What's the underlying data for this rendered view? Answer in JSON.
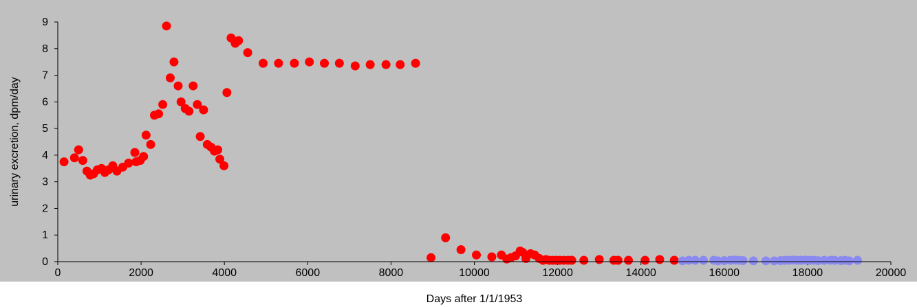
{
  "chart_data": {
    "type": "scatter",
    "title": "",
    "xlabel": "Days after 1/1/1953",
    "ylabel": "urinary excretion, dpm/day",
    "xlim": [
      0,
      20000
    ],
    "ylim": [
      0,
      9
    ],
    "xticks": [
      0,
      2000,
      4000,
      6000,
      8000,
      10000,
      12000,
      14000,
      16000,
      18000,
      20000
    ],
    "yticks": [
      0,
      1,
      2,
      3,
      4,
      5,
      6,
      7,
      8,
      9
    ],
    "grid": false,
    "legend": "none",
    "plot_background": "#c0c0c0",
    "series": [
      {
        "color": "#ff0000",
        "points": [
          [
            150,
            3.75
          ],
          [
            400,
            3.9
          ],
          [
            500,
            4.2
          ],
          [
            600,
            3.8
          ],
          [
            700,
            3.4
          ],
          [
            780,
            3.25
          ],
          [
            860,
            3.3
          ],
          [
            950,
            3.45
          ],
          [
            1050,
            3.5
          ],
          [
            1130,
            3.35
          ],
          [
            1220,
            3.45
          ],
          [
            1320,
            3.6
          ],
          [
            1420,
            3.4
          ],
          [
            1560,
            3.55
          ],
          [
            1700,
            3.7
          ],
          [
            1850,
            4.1
          ],
          [
            1880,
            3.75
          ],
          [
            1980,
            3.8
          ],
          [
            2060,
            3.95
          ],
          [
            2120,
            4.75
          ],
          [
            2230,
            4.4
          ],
          [
            2320,
            5.5
          ],
          [
            2420,
            5.55
          ],
          [
            2520,
            5.9
          ],
          [
            2610,
            8.85
          ],
          [
            2700,
            6.9
          ],
          [
            2790,
            7.5
          ],
          [
            2890,
            6.6
          ],
          [
            2960,
            6.0
          ],
          [
            3060,
            5.75
          ],
          [
            3150,
            5.65
          ],
          [
            3250,
            6.6
          ],
          [
            3350,
            5.9
          ],
          [
            3420,
            4.7
          ],
          [
            3500,
            5.7
          ],
          [
            3590,
            4.4
          ],
          [
            3680,
            4.3
          ],
          [
            3760,
            4.15
          ],
          [
            3840,
            4.2
          ],
          [
            3890,
            3.85
          ],
          [
            3990,
            3.6
          ],
          [
            4060,
            6.35
          ],
          [
            4160,
            8.4
          ],
          [
            4260,
            8.2
          ],
          [
            4340,
            8.3
          ],
          [
            4560,
            7.85
          ],
          [
            4930,
            7.45
          ],
          [
            5300,
            7.45
          ],
          [
            5680,
            7.45
          ],
          [
            6040,
            7.5
          ],
          [
            6400,
            7.45
          ],
          [
            6760,
            7.45
          ],
          [
            7140,
            7.35
          ],
          [
            7500,
            7.4
          ],
          [
            7880,
            7.4
          ],
          [
            8220,
            7.4
          ],
          [
            8590,
            7.45
          ],
          [
            8960,
            0.15
          ],
          [
            9310,
            0.9
          ],
          [
            9680,
            0.45
          ],
          [
            10050,
            0.25
          ],
          [
            10420,
            0.18
          ],
          [
            10650,
            0.25
          ],
          [
            10780,
            0.1
          ],
          [
            10880,
            0.15
          ],
          [
            10990,
            0.22
          ],
          [
            11100,
            0.4
          ],
          [
            11160,
            0.35
          ],
          [
            11240,
            0.12
          ],
          [
            11350,
            0.3
          ],
          [
            11450,
            0.25
          ],
          [
            11560,
            0.12
          ],
          [
            11650,
            0.05
          ],
          [
            11720,
            0.08
          ],
          [
            11800,
            0.05
          ],
          [
            11880,
            0.05
          ],
          [
            11960,
            0.05
          ],
          [
            12050,
            0.05
          ],
          [
            12150,
            0.05
          ],
          [
            12250,
            0.05
          ],
          [
            12340,
            0.05
          ],
          [
            12630,
            0.05
          ],
          [
            13000,
            0.08
          ],
          [
            13350,
            0.05
          ],
          [
            13450,
            0.05
          ],
          [
            13700,
            0.05
          ],
          [
            14100,
            0.05
          ],
          [
            14450,
            0.08
          ],
          [
            14800,
            0.05
          ]
        ]
      },
      {
        "color": "#8a8af0",
        "points": [
          [
            15000,
            0.03
          ],
          [
            15150,
            0.05
          ],
          [
            15300,
            0.05
          ],
          [
            15500,
            0.05
          ],
          [
            15750,
            0.05
          ],
          [
            15850,
            0.03
          ],
          [
            16000,
            0.04
          ],
          [
            16150,
            0.05
          ],
          [
            16250,
            0.06
          ],
          [
            16350,
            0.05
          ],
          [
            16450,
            0.04
          ],
          [
            16700,
            0.03
          ],
          [
            17000,
            0.03
          ],
          [
            17200,
            0.03
          ],
          [
            17350,
            0.04
          ],
          [
            17450,
            0.05
          ],
          [
            17550,
            0.05
          ],
          [
            17650,
            0.06
          ],
          [
            17750,
            0.05
          ],
          [
            17850,
            0.05
          ],
          [
            17950,
            0.06
          ],
          [
            18050,
            0.05
          ],
          [
            18150,
            0.05
          ],
          [
            18250,
            0.04
          ],
          [
            18400,
            0.05
          ],
          [
            18550,
            0.05
          ],
          [
            18650,
            0.05
          ],
          [
            18800,
            0.04
          ],
          [
            18900,
            0.05
          ],
          [
            19000,
            0.03
          ],
          [
            19200,
            0.05
          ]
        ]
      }
    ]
  }
}
